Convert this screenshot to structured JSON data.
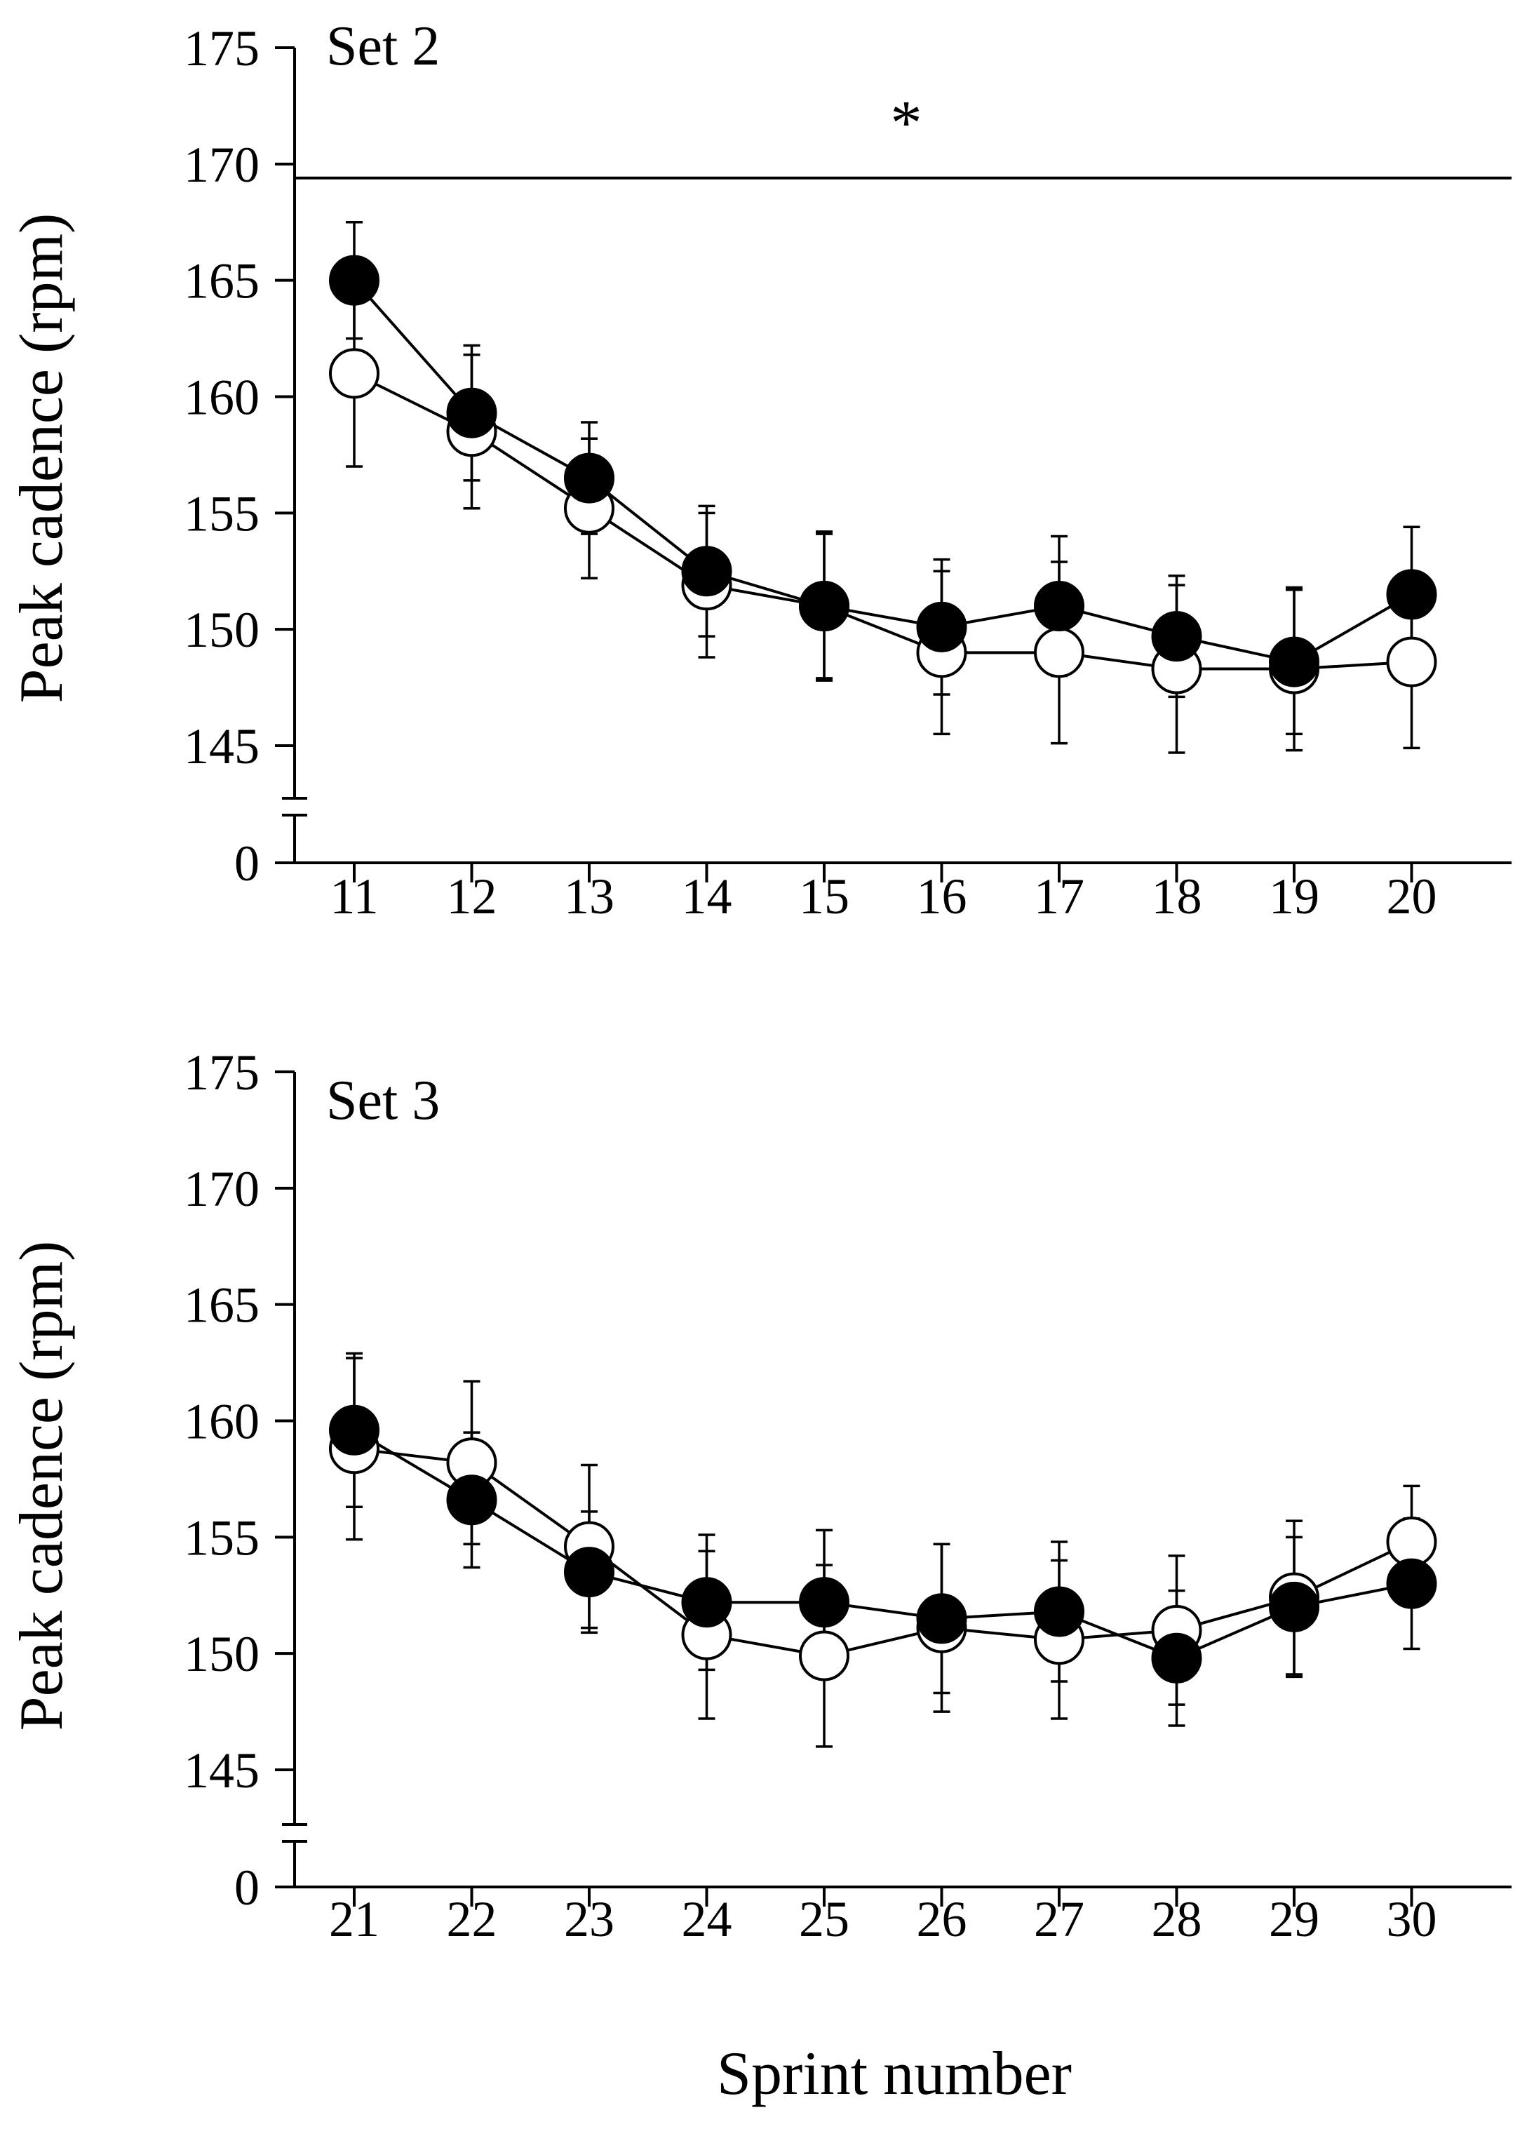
{
  "figure": {
    "xlabel": "Sprint number",
    "ylabel": "Peak cadence (rpm)"
  },
  "chart_data": [
    {
      "type": "line",
      "panel_label": "Set 2",
      "annotation": "*",
      "reference_line_y": 169.4,
      "x": [
        11,
        12,
        13,
        14,
        15,
        16,
        17,
        18,
        19,
        20
      ],
      "ylabel": "Peak cadence (rpm)",
      "ylim": [
        145,
        175
      ],
      "axis_break": true,
      "y_ticks": [
        "0",
        "145",
        "150",
        "155",
        "160",
        "165",
        "170",
        "175"
      ],
      "series": [
        {
          "marker": "filled-circle",
          "color": "#000000",
          "values": [
            165.0,
            159.3,
            156.5,
            152.5,
            151.0,
            150.1,
            151.0,
            149.7,
            148.6,
            151.5
          ],
          "error": [
            2.5,
            2.9,
            2.4,
            2.8,
            3.2,
            2.9,
            3.0,
            2.6,
            3.1,
            2.9
          ]
        },
        {
          "marker": "open-circle",
          "color": "#ffffff",
          "values": [
            161.0,
            158.5,
            155.2,
            151.9,
            151.0,
            149.0,
            149.0,
            148.3,
            148.3,
            148.6
          ],
          "error": [
            4.0,
            3.3,
            3.0,
            3.1,
            3.1,
            3.5,
            3.9,
            3.6,
            3.5,
            3.7
          ]
        }
      ]
    },
    {
      "type": "line",
      "panel_label": "Set 3",
      "x": [
        21,
        22,
        23,
        24,
        25,
        26,
        27,
        28,
        29,
        30
      ],
      "xlabel": "Sprint number",
      "ylabel": "Peak cadence (rpm)",
      "ylim": [
        145,
        175
      ],
      "axis_break": true,
      "y_ticks": [
        "0",
        "145",
        "150",
        "155",
        "160",
        "165",
        "170",
        "175"
      ],
      "series": [
        {
          "marker": "filled-circle",
          "color": "#000000",
          "values": [
            159.6,
            156.6,
            153.5,
            152.2,
            152.2,
            151.5,
            151.8,
            149.8,
            152.0,
            153.0
          ],
          "error": [
            3.3,
            2.9,
            2.6,
            2.9,
            3.1,
            3.2,
            3.0,
            2.9,
            3.0,
            2.8
          ]
        },
        {
          "marker": "open-circle",
          "color": "#ffffff",
          "values": [
            158.8,
            158.2,
            154.6,
            150.8,
            149.9,
            151.1,
            150.6,
            151.0,
            152.4,
            154.8
          ],
          "error": [
            3.9,
            3.5,
            3.5,
            3.6,
            3.9,
            3.6,
            3.4,
            3.2,
            3.3,
            2.4
          ]
        }
      ]
    }
  ]
}
